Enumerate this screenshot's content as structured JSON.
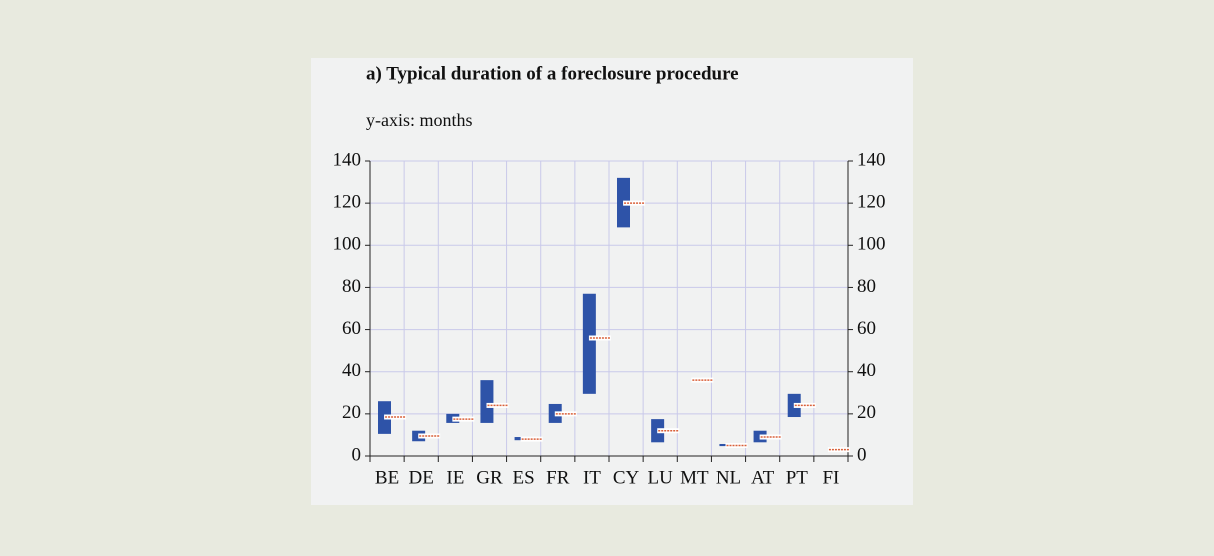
{
  "chart_data": {
    "type": "rangebar",
    "title": "a) Typical duration of a foreclosure procedure",
    "subtitle": "y-axis: months",
    "categories": [
      "BE",
      "DE",
      "IE",
      "GR",
      "ES",
      "FR",
      "IT",
      "CY",
      "LU",
      "MT",
      "NL",
      "AT",
      "PT",
      "FI"
    ],
    "low": [
      10.5,
      7,
      15.7,
      15.7,
      7.5,
      15.7,
      29.5,
      108.5,
      6.5,
      null,
      4.7,
      6.5,
      18.5,
      null
    ],
    "high": [
      26,
      12,
      20,
      36,
      9,
      24.7,
      77,
      132,
      17.5,
      null,
      5.7,
      12,
      29.5,
      null
    ],
    "marker": [
      18.5,
      9.5,
      17.5,
      24,
      8,
      20,
      56,
      120,
      12,
      36,
      5,
      9,
      24,
      3
    ],
    "bar_color": "#2e53a8",
    "marker_color": "#d9603a",
    "ylim": [
      0,
      140
    ],
    "yticks": [
      0,
      20,
      40,
      60,
      80,
      100,
      120,
      140
    ],
    "grid": true
  }
}
